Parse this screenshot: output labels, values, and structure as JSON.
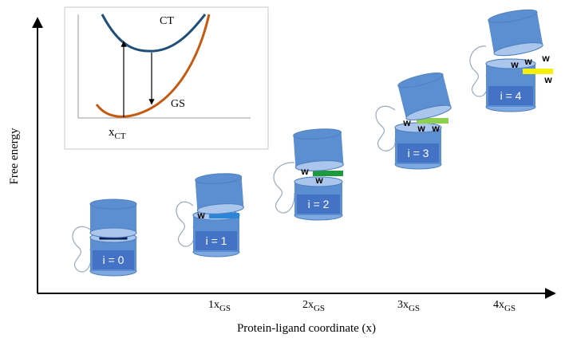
{
  "axes": {
    "ylabel": "Free energy",
    "xlabel": "Protein-ligand coordinate (x)",
    "ticks": [
      {
        "main": "1x",
        "sub": "GS"
      },
      {
        "main": "2x",
        "sub": "GS"
      },
      {
        "main": "3x",
        "sub": "GS"
      },
      {
        "main": "4x",
        "sub": "GS"
      }
    ]
  },
  "inset": {
    "curve_upper_label": "CT",
    "curve_lower_label": "GS",
    "x_main": "x",
    "x_sub": "CT"
  },
  "states": [
    {
      "label": "i = 0",
      "waters": [],
      "ligand_color": "#0d1e5c"
    },
    {
      "label": "i = 1",
      "waters": [
        "w"
      ],
      "ligand_color": "#2c86d8"
    },
    {
      "label": "i = 2",
      "waters": [
        "w",
        "w"
      ],
      "ligand_color": "#1f9a3c"
    },
    {
      "label": "i = 3",
      "waters": [
        "w",
        "w",
        "w"
      ],
      "ligand_color": "#8fcf4f"
    },
    {
      "label": "i = 4",
      "waters": [
        "w",
        "w",
        "w",
        "w"
      ],
      "ligand_color": "#f5ee10"
    }
  ],
  "colors": {
    "ct_curve": "#1f4e79",
    "gs_curve": "#c55a11",
    "barrel": "#5b8fd2",
    "barrel_top": "#aac6ec",
    "label_box": "#4472c4"
  }
}
